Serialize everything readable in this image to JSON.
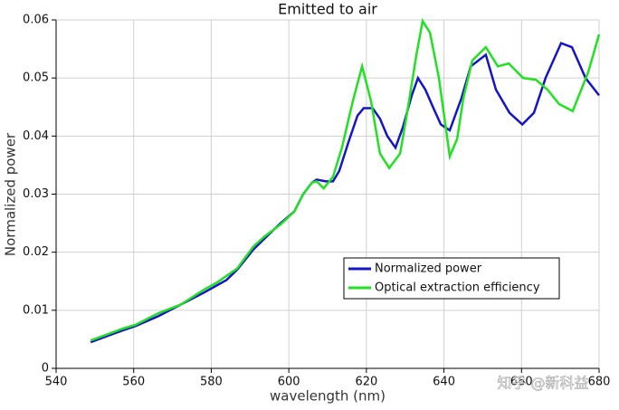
{
  "chart_data": {
    "type": "line",
    "title": "Emitted to air",
    "x_label": "wavelength (nm)",
    "y_label": "Normalized power",
    "xlim": [
      540,
      680
    ],
    "xticks": [
      540,
      560,
      580,
      600,
      620,
      640,
      660,
      680
    ],
    "ylim": [
      0,
      0.06
    ],
    "yticks": [
      0,
      0.01,
      0.02,
      0.03,
      0.04,
      0.05,
      0.06
    ],
    "grid": true,
    "legend": "lower right",
    "watermark": "知乎 @新科益",
    "series": [
      {
        "name": "Normalized power",
        "color": "#1515c8",
        "x": [
          548.9,
          557,
          560.5,
          566.4,
          572.2,
          578,
          583.9,
          586.7,
          590.9,
          595.5,
          597.9,
          601.4,
          603.7,
          606,
          607.2,
          609.5,
          611.4,
          613,
          615.4,
          617.7,
          619.3,
          621.6,
          623.5,
          625.4,
          627.5,
          629.4,
          631.7,
          633.3,
          635.2,
          637.5,
          639.2,
          641.5,
          644.5,
          646.9,
          650.8,
          653.4,
          656.9,
          660.2,
          663.2,
          666.2,
          670.2,
          673,
          676.5,
          680
        ],
        "values": [
          0.0045,
          0.0065,
          0.0073,
          0.009,
          0.011,
          0.013,
          0.0152,
          0.017,
          0.0205,
          0.0235,
          0.025,
          0.027,
          0.03,
          0.032,
          0.0325,
          0.0322,
          0.0322,
          0.034,
          0.039,
          0.0435,
          0.0448,
          0.0448,
          0.043,
          0.04,
          0.038,
          0.0415,
          0.047,
          0.05,
          0.048,
          0.0445,
          0.042,
          0.041,
          0.0465,
          0.052,
          0.054,
          0.048,
          0.044,
          0.042,
          0.044,
          0.05,
          0.056,
          0.0553,
          0.05,
          0.047
        ]
      },
      {
        "name": "Optical extraction efficiency",
        "color": "#22e022",
        "x": [
          548.9,
          557,
          560.5,
          566.4,
          572.2,
          578,
          581.5,
          586.7,
          590.9,
          593.9,
          597.9,
          601.4,
          603.7,
          606,
          607.2,
          609,
          611.4,
          613.7,
          616.5,
          618.9,
          621.2,
          623.5,
          625.9,
          628.7,
          630.5,
          632.9,
          634.5,
          636.4,
          638.7,
          641.5,
          643.4,
          645,
          647.3,
          650.8,
          653.9,
          656.7,
          660.4,
          663.7,
          666.7,
          669.7,
          673.2,
          677.2,
          680
        ],
        "values": [
          0.0048,
          0.0068,
          0.0075,
          0.0095,
          0.011,
          0.0135,
          0.0148,
          0.0172,
          0.021,
          0.0228,
          0.0248,
          0.027,
          0.03,
          0.032,
          0.0322,
          0.031,
          0.033,
          0.038,
          0.046,
          0.052,
          0.046,
          0.037,
          0.0345,
          0.037,
          0.044,
          0.054,
          0.0598,
          0.0578,
          0.05,
          0.0365,
          0.0395,
          0.0465,
          0.053,
          0.0553,
          0.052,
          0.0525,
          0.05,
          0.0497,
          0.048,
          0.0455,
          0.0443,
          0.051,
          0.0575
        ]
      }
    ]
  }
}
